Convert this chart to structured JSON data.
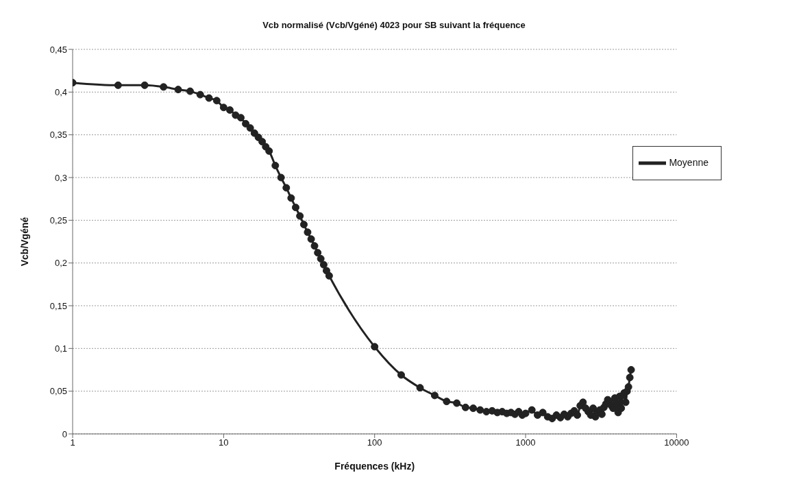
{
  "chart_data": {
    "type": "line",
    "title": "Vcb normalisé (Vcb/Vgéné) 4023 pour SB suivant la fréquence",
    "xlabel": "Fréquences (kHz)",
    "ylabel": "Vcb/Vgéné",
    "log": "x",
    "grid": "y",
    "legend": "top right",
    "marker": "circle",
    "line_style": "solid",
    "xlim": [
      1,
      10000
    ],
    "xticks": [
      1,
      10,
      100,
      1000,
      10000
    ],
    "ylim": [
      0,
      0.45
    ],
    "yticks": [
      0,
      {
        "value": 0.05,
        "label": "0,05"
      },
      {
        "value": 0.1,
        "label": "0,1"
      },
      {
        "value": 0.15,
        "label": "0,15"
      },
      {
        "value": 0.2,
        "label": "0,2"
      },
      {
        "value": 0.25,
        "label": "0,25"
      },
      {
        "value": 0.3,
        "label": "0,3"
      },
      {
        "value": 0.35,
        "label": "0,35"
      },
      {
        "value": 0.4,
        "label": "0,4"
      },
      {
        "value": 0.45,
        "label": "0,45"
      }
    ],
    "x": [
      1,
      2,
      3,
      4,
      5,
      6,
      7,
      8,
      9,
      10,
      11,
      12,
      13,
      14,
      15,
      16,
      17,
      18,
      19,
      20,
      22,
      24,
      26,
      28,
      30,
      32,
      34,
      36,
      38,
      40,
      42,
      44,
      46,
      48,
      50,
      100,
      150,
      200,
      250,
      300,
      350,
      400,
      450,
      500,
      550,
      600,
      650,
      700,
      750,
      800,
      850,
      900,
      950,
      1000,
      1100,
      1200,
      1300,
      1400,
      1500,
      1600,
      1700,
      1800,
      1900,
      2000,
      2100,
      2200,
      2300,
      2400,
      2500,
      2600,
      2700,
      2800,
      2900,
      3000,
      3100,
      3200,
      3300,
      3400,
      3500,
      3600,
      3700,
      3800,
      3900,
      4000,
      4100,
      4200,
      4300,
      4400,
      4500,
      4600,
      4700,
      4800,
      4900,
      5000
    ],
    "series": [
      {
        "name": "Moyenne",
        "color": "#222222",
        "values": [
          0.411,
          0.408,
          0.408,
          0.406,
          0.403,
          0.401,
          0.397,
          0.393,
          0.39,
          0.382,
          0.379,
          0.373,
          0.37,
          0.363,
          0.358,
          0.352,
          0.347,
          0.342,
          0.336,
          0.331,
          0.314,
          0.3,
          0.288,
          0.276,
          0.265,
          0.255,
          0.245,
          0.236,
          0.228,
          0.22,
          0.212,
          0.205,
          0.198,
          0.191,
          0.185,
          0.102,
          0.069,
          0.054,
          0.045,
          0.038,
          0.036,
          0.031,
          0.03,
          0.028,
          0.026,
          0.027,
          0.025,
          0.026,
          0.024,
          0.025,
          0.023,
          0.026,
          0.022,
          0.024,
          0.028,
          0.022,
          0.025,
          0.02,
          0.018,
          0.022,
          0.019,
          0.023,
          0.02,
          0.024,
          0.027,
          0.022,
          0.033,
          0.037,
          0.03,
          0.026,
          0.022,
          0.03,
          0.02,
          0.025,
          0.028,
          0.023,
          0.031,
          0.035,
          0.04,
          0.038,
          0.033,
          0.03,
          0.042,
          0.036,
          0.025,
          0.044,
          0.03,
          0.045,
          0.048,
          0.037,
          0.05,
          0.055,
          0.066,
          0.075
        ]
      }
    ]
  }
}
